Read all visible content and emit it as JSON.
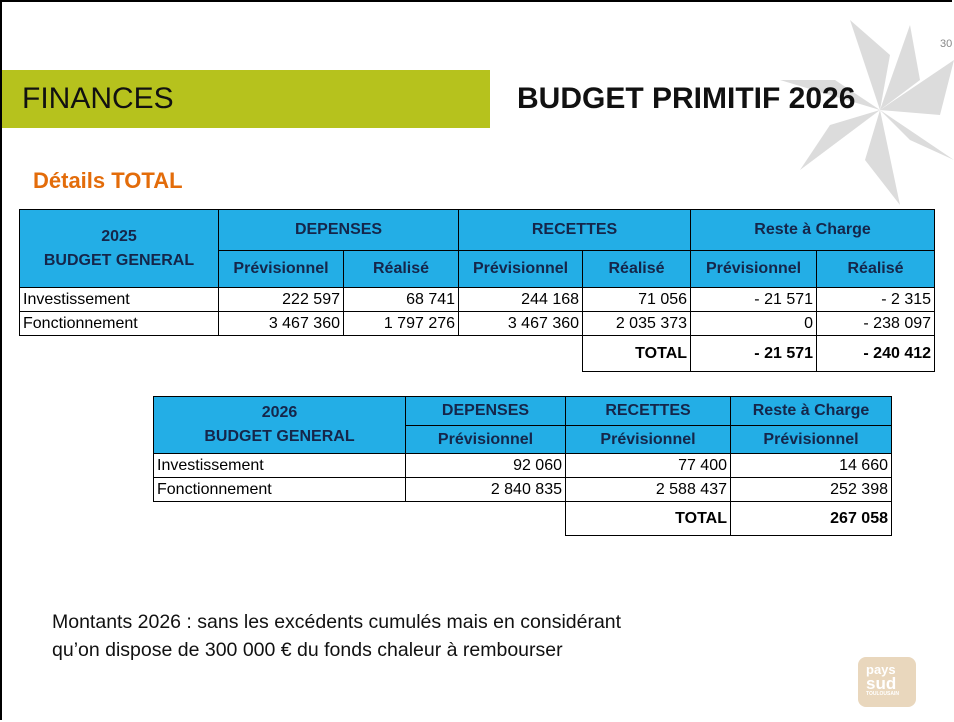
{
  "slide_number": "30",
  "header": {
    "section": "FINANCES",
    "title": "BUDGET PRIMITIF 2026"
  },
  "subtitle": "Détails TOTAL",
  "table_2025": {
    "year": "2025",
    "label": "BUDGET GENERAL",
    "groups": [
      "DEPENSES",
      "RECETTES",
      "Reste à Charge"
    ],
    "subheaders": [
      "Prévisionnel",
      "Réalisé",
      "Prévisionnel",
      "Réalisé",
      "Prévisionnel",
      "Réalisé"
    ],
    "rows": [
      [
        "Investissement",
        "222 597",
        "68 741",
        "244 168",
        "71 056",
        "- 21 571",
        "- 2 315"
      ],
      [
        "Fonctionnement",
        "3 467 360",
        "1 797 276",
        "3 467 360",
        "2 035 373",
        "0",
        "- 238 097"
      ]
    ],
    "total": {
      "label": "TOTAL",
      "values": [
        "- 21 571",
        "- 240 412"
      ]
    }
  },
  "table_2026": {
    "year": "2026",
    "label": "BUDGET GENERAL",
    "groups": [
      "DEPENSES",
      "RECETTES",
      "Reste à Charge"
    ],
    "subheaders": [
      "Prévisionnel",
      "Prévisionnel",
      "Prévisionnel"
    ],
    "rows": [
      [
        "Investissement",
        "92 060",
        "77 400",
        "14 660"
      ],
      [
        "Fonctionnement",
        "2 840 835",
        "2 588 437",
        "252 398"
      ]
    ],
    "total": {
      "label": "TOTAL",
      "values": [
        "267 058"
      ]
    }
  },
  "note": [
    "Montants 2026 : sans les excédents cumulés mais en considérant",
    "qu’on dispose de 300 000 € du fonds chaleur à rembourser"
  ],
  "logo": [
    "pays",
    "sud",
    "TOULOUSAIN"
  ]
}
